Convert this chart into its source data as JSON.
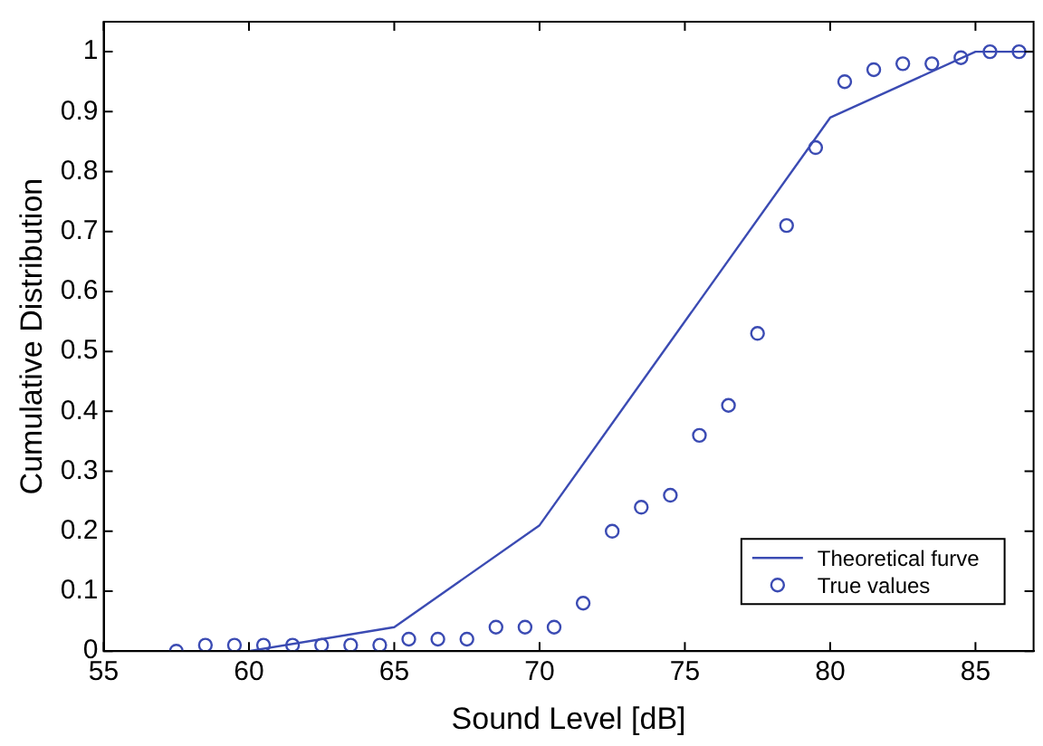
{
  "chart_data": {
    "type": "line",
    "xlabel": "Sound Level [dB]",
    "ylabel": "Cumulative Distribution",
    "xlim": [
      55,
      87
    ],
    "xticks": [
      55,
      60,
      65,
      70,
      75,
      80,
      85
    ],
    "ylim": [
      0,
      1.05
    ],
    "yticks": [
      0,
      0.1,
      0.2,
      0.3,
      0.4,
      0.5,
      0.6,
      0.7,
      0.8,
      0.9,
      1
    ],
    "grid": false,
    "legend": "bottom right",
    "series": [
      {
        "name": "Theoretical furve",
        "type": "line",
        "color": "#3b4bb3",
        "marker": "none",
        "line_style": "solid",
        "x": [
          60,
          65,
          70,
          75,
          80,
          85,
          87
        ],
        "values": [
          0,
          0.04,
          0.21,
          0.55,
          0.89,
          1,
          1
        ]
      },
      {
        "name": "True values",
        "type": "scatter",
        "color": "#3b4bb3",
        "marker": "circle",
        "x": [
          57.5,
          58.5,
          59.5,
          60.5,
          61.5,
          62.5,
          63.5,
          64.5,
          65.5,
          66.5,
          67.5,
          68.5,
          69.5,
          70.5,
          71.5,
          72.5,
          73.5,
          74.5,
          75.5,
          76.5,
          77.5,
          78.5,
          79.5,
          80.5,
          81.5,
          82.5,
          83.5,
          84.5,
          85.5,
          86.5
        ],
        "values": [
          0,
          0.01,
          0.01,
          0.01,
          0.01,
          0.01,
          0.01,
          0.01,
          0.02,
          0.02,
          0.02,
          0.04,
          0.04,
          0.04,
          0.08,
          0.2,
          0.24,
          0.26,
          0.36,
          0.41,
          0.53,
          0.71,
          0.84,
          0.95,
          0.97,
          0.98,
          0.98,
          0.99,
          1,
          1
        ]
      }
    ]
  }
}
